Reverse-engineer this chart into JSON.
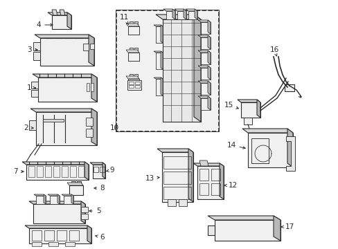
{
  "bg_color": "#ffffff",
  "line_color": "#2a2a2a",
  "label_color": "#2a2a2a",
  "fill_light": "#f0f0f0",
  "fill_mid": "#d8d8d8",
  "fill_dark": "#b8b8b8",
  "fill_gray": "#e8e8e8",
  "bcm_fill": "#ebebeb",
  "figsize": [
    4.89,
    3.6
  ],
  "dpi": 100
}
